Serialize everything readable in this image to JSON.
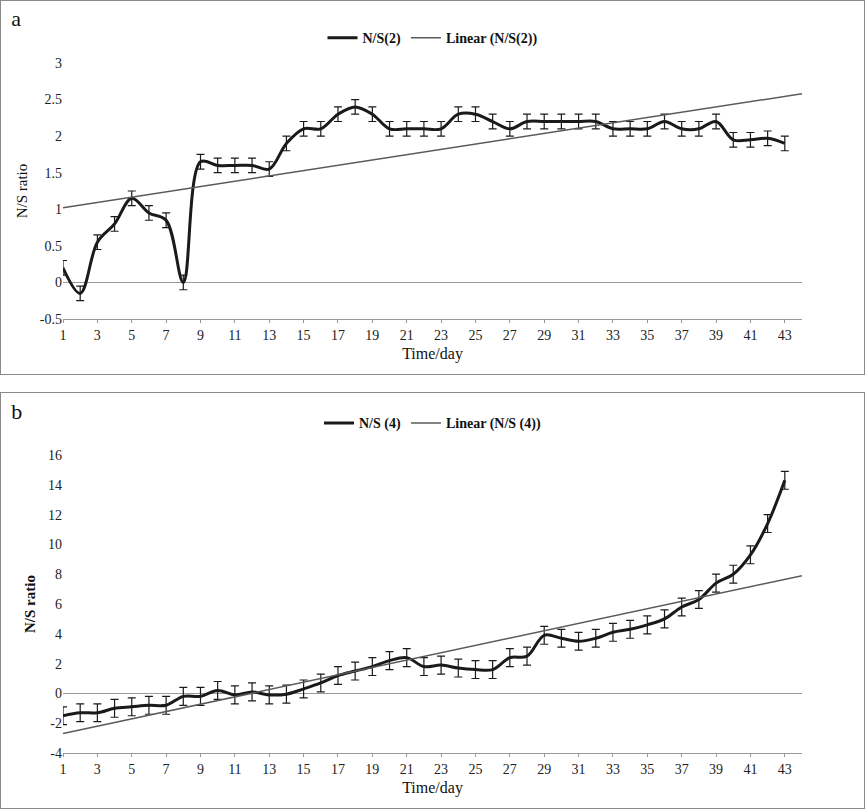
{
  "chart_data": [
    {
      "type": "line",
      "title": "a",
      "x_label": "Time/day",
      "y_label": "N/S ratio",
      "x": [
        1,
        2,
        3,
        4,
        5,
        6,
        7,
        8,
        9,
        10,
        11,
        12,
        13,
        14,
        15,
        16,
        17,
        18,
        19,
        20,
        21,
        22,
        23,
        24,
        25,
        26,
        27,
        28,
        29,
        30,
        31,
        32,
        33,
        34,
        35,
        36,
        37,
        38,
        39,
        40,
        41,
        42,
        43
      ],
      "series": [
        {
          "name": "N/S(2)",
          "color": "#1a1a1a",
          "line_style": "solid",
          "values": [
            0.2,
            -0.15,
            0.55,
            0.8,
            1.15,
            0.95,
            0.85,
            0.0,
            1.65,
            1.6,
            1.6,
            1.6,
            1.55,
            1.9,
            2.1,
            2.1,
            2.3,
            2.4,
            2.3,
            2.1,
            2.1,
            2.1,
            2.1,
            2.3,
            2.3,
            2.2,
            2.1,
            2.2,
            2.2,
            2.2,
            2.2,
            2.2,
            2.1,
            2.1,
            2.1,
            2.2,
            2.1,
            2.1,
            2.2,
            1.95,
            1.95,
            1.97,
            1.9
          ],
          "error": [
            0.1,
            0.1,
            0.1,
            0.1,
            0.1,
            0.1,
            0.1,
            0.1,
            0.1,
            0.1,
            0.1,
            0.1,
            0.1,
            0.1,
            0.1,
            0.1,
            0.1,
            0.1,
            0.1,
            0.1,
            0.1,
            0.1,
            0.1,
            0.1,
            0.1,
            0.1,
            0.1,
            0.1,
            0.1,
            0.1,
            0.1,
            0.1,
            0.1,
            0.1,
            0.1,
            0.1,
            0.1,
            0.1,
            0.1,
            0.1,
            0.1,
            0.1,
            0.1
          ]
        },
        {
          "name": "Linear (N/S(2))",
          "color": "#5a5a5a",
          "line_style": "solid",
          "x": [
            1,
            44
          ],
          "values": [
            1.02,
            2.58
          ]
        }
      ],
      "xlim": [
        1,
        44
      ],
      "xticks": [
        1,
        3,
        5,
        7,
        9,
        11,
        13,
        15,
        17,
        19,
        21,
        23,
        25,
        27,
        29,
        31,
        33,
        35,
        37,
        39,
        41,
        43
      ],
      "ylim": [
        -0.5,
        3
      ],
      "yticks": [
        -0.5,
        0,
        0.5,
        1,
        1.5,
        2,
        2.5,
        3
      ],
      "grid": false,
      "legend": "top"
    },
    {
      "type": "line",
      "title": "b",
      "x_label": "Time/day",
      "y_label": "N/S ratio",
      "x": [
        1,
        2,
        3,
        4,
        5,
        6,
        7,
        8,
        9,
        10,
        11,
        12,
        13,
        14,
        15,
        16,
        17,
        18,
        19,
        20,
        21,
        22,
        23,
        24,
        25,
        26,
        27,
        28,
        29,
        30,
        31,
        32,
        33,
        34,
        35,
        36,
        37,
        38,
        39,
        40,
        41,
        42,
        43
      ],
      "series": [
        {
          "name": "N/S (4)",
          "color": "#1a1a1a",
          "line_style": "solid",
          "values": [
            -1.5,
            -1.3,
            -1.3,
            -1.0,
            -0.9,
            -0.8,
            -0.8,
            -0.2,
            -0.2,
            0.2,
            -0.1,
            0.1,
            -0.1,
            -0.05,
            0.3,
            0.7,
            1.2,
            1.5,
            1.8,
            2.2,
            2.4,
            1.8,
            1.9,
            1.7,
            1.6,
            1.6,
            2.4,
            2.5,
            3.9,
            3.7,
            3.5,
            3.7,
            4.1,
            4.3,
            4.6,
            5.0,
            5.8,
            6.3,
            7.4,
            8.0,
            9.3,
            11.4,
            14.3
          ],
          "error": [
            0.6,
            0.6,
            0.6,
            0.6,
            0.6,
            0.6,
            0.6,
            0.6,
            0.6,
            0.6,
            0.6,
            0.6,
            0.6,
            0.6,
            0.6,
            0.6,
            0.6,
            0.6,
            0.6,
            0.6,
            0.6,
            0.6,
            0.6,
            0.6,
            0.6,
            0.6,
            0.6,
            0.6,
            0.6,
            0.6,
            0.6,
            0.6,
            0.6,
            0.6,
            0.6,
            0.6,
            0.6,
            0.6,
            0.6,
            0.6,
            0.6,
            0.6,
            0.6
          ]
        },
        {
          "name": "Linear (N/S (4))",
          "color": "#5a5a5a",
          "line_style": "solid",
          "x": [
            1,
            44
          ],
          "values": [
            -2.7,
            7.9
          ]
        }
      ],
      "xlim": [
        1,
        44
      ],
      "xticks": [
        1,
        3,
        5,
        7,
        9,
        11,
        13,
        15,
        17,
        19,
        21,
        23,
        25,
        27,
        29,
        31,
        33,
        35,
        37,
        39,
        41,
        43
      ],
      "ylim": [
        -4,
        16
      ],
      "yticks": [
        -4,
        -2,
        0,
        2,
        4,
        6,
        8,
        10,
        12,
        14,
        16
      ],
      "grid": false,
      "legend": "top"
    }
  ]
}
